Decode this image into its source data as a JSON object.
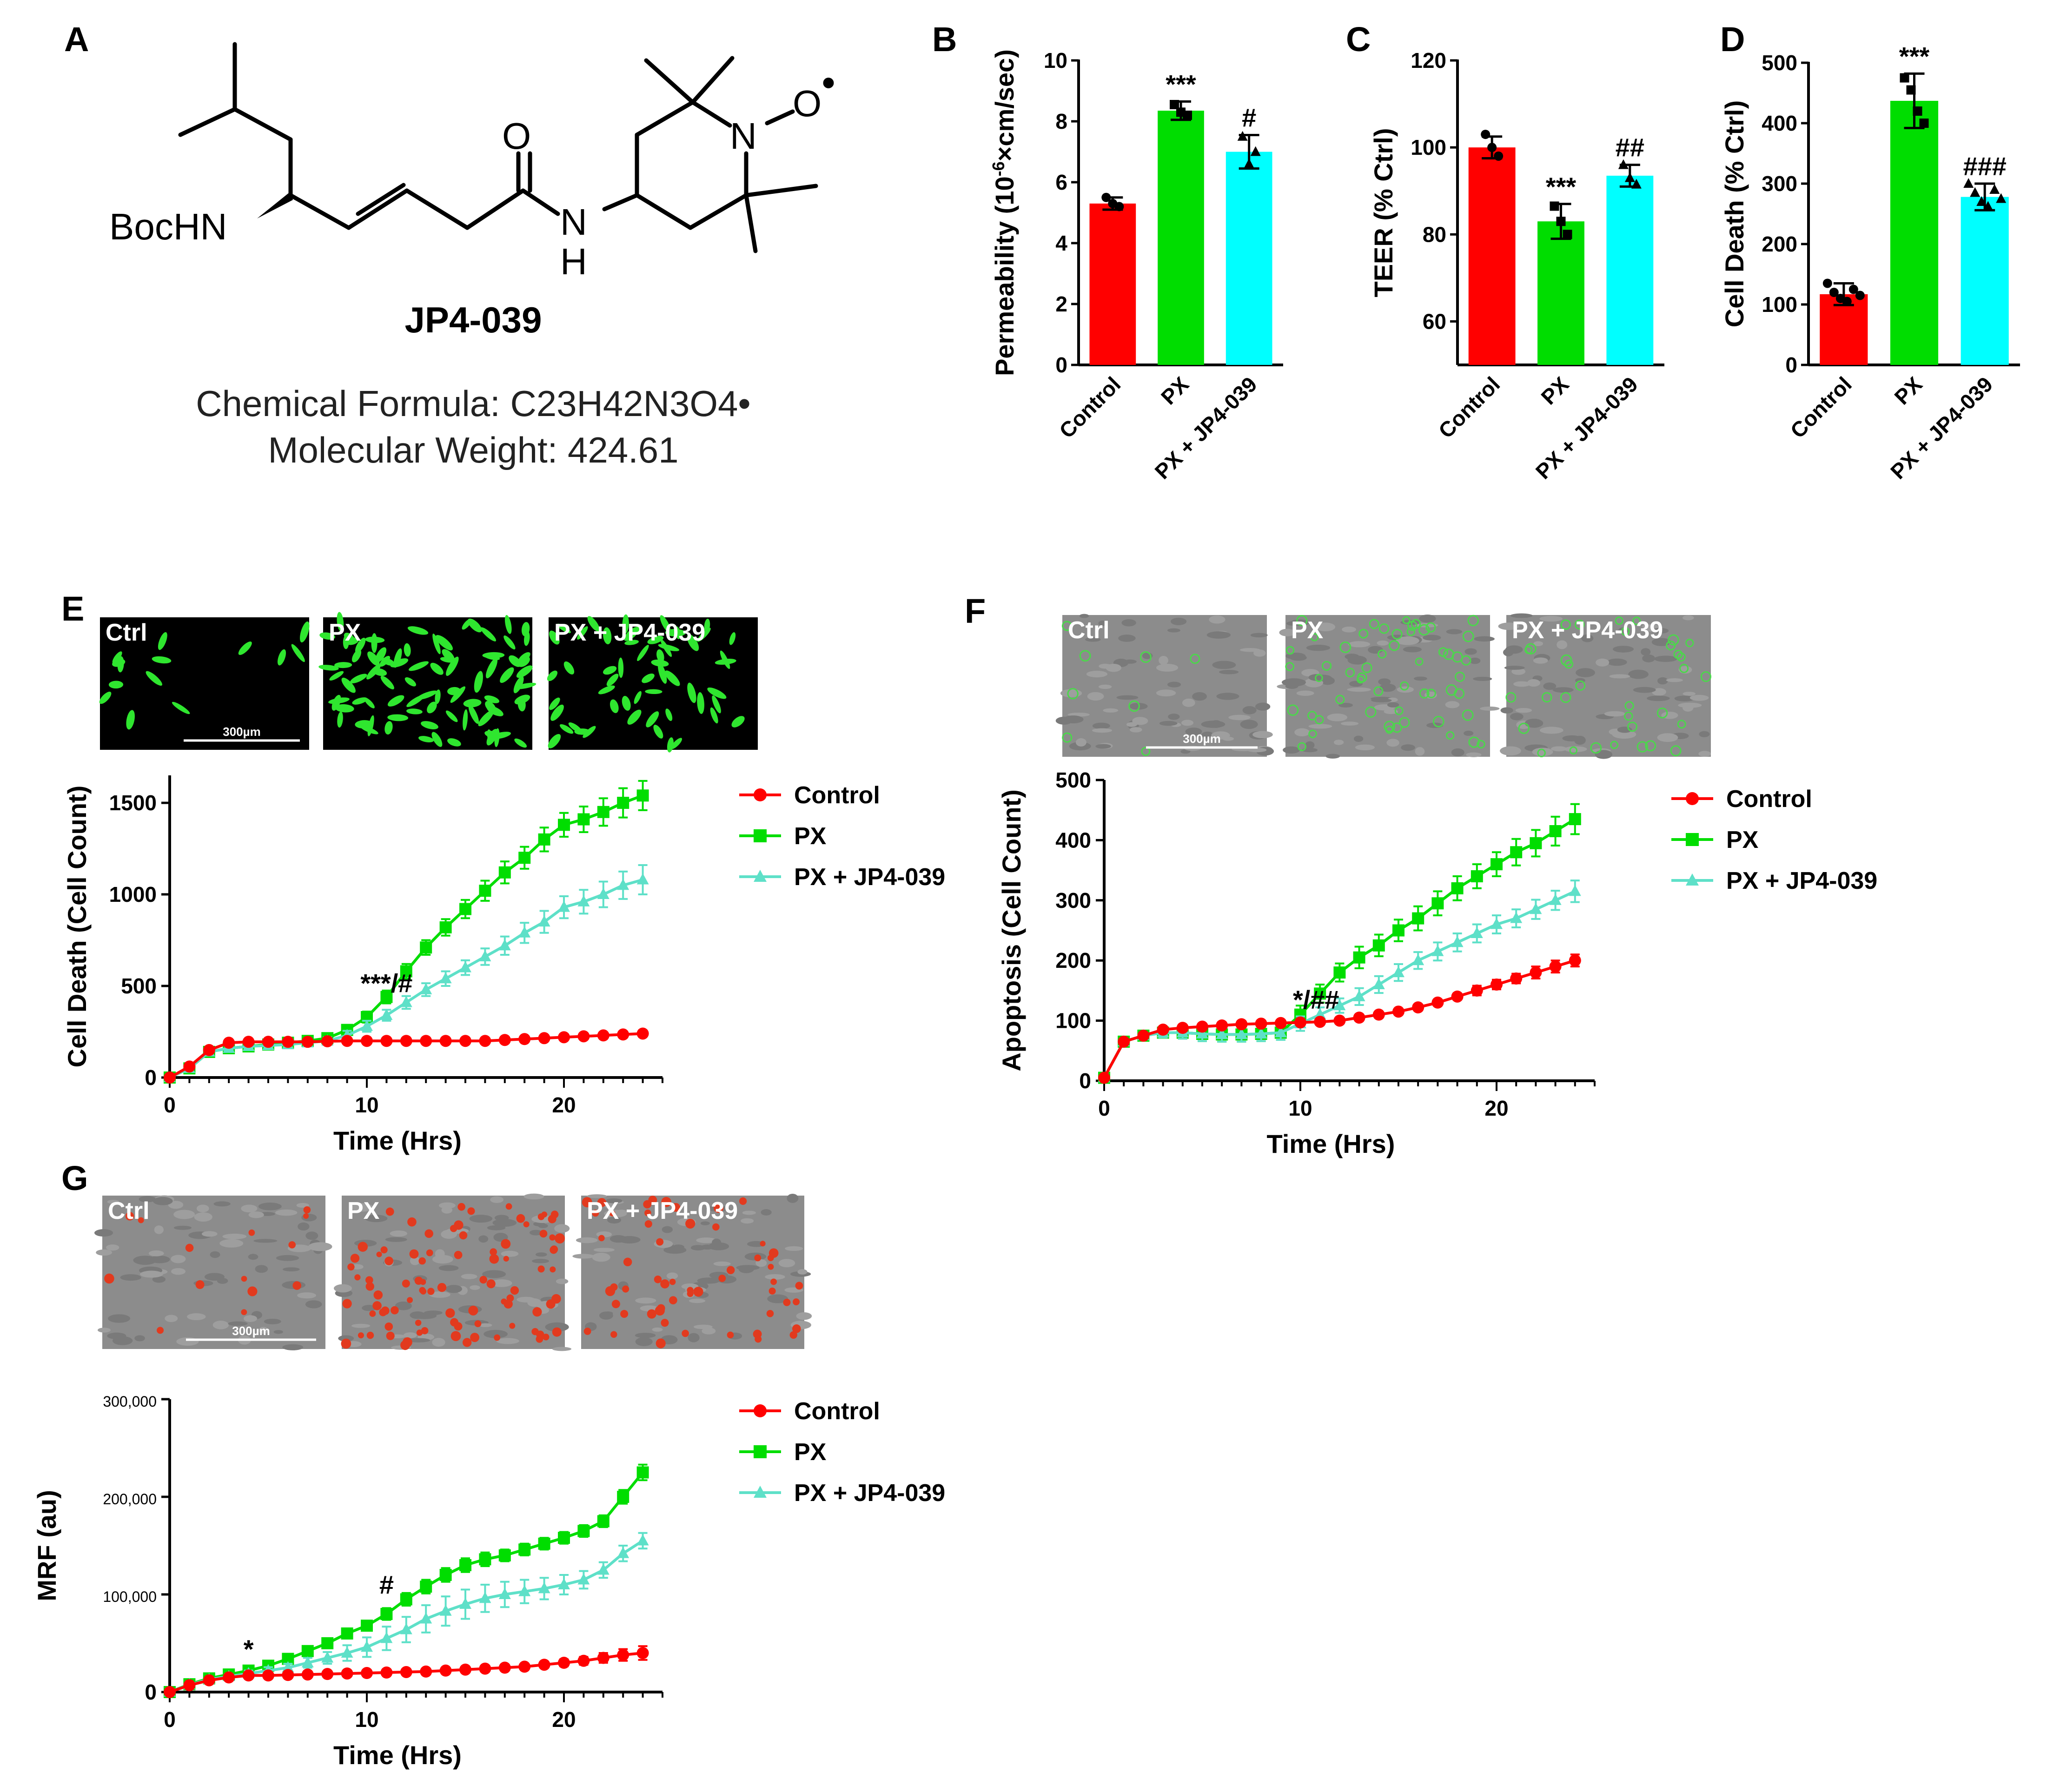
{
  "panels": {
    "A": "A",
    "B": "B",
    "C": "C",
    "D": "D",
    "E": "E",
    "F": "F",
    "G": "G"
  },
  "compound": {
    "bochn_label": "BocHN",
    "o_label": "O",
    "n_label": "N",
    "h_label": "H",
    "ring_n_label": "N",
    "ring_o_label": "O",
    "radical_dot": "•",
    "name": "JP4-039",
    "formula": "Chemical Formula: C23H42N3O4•",
    "weight": "Molecular Weight: 424.61"
  },
  "images": {
    "E": {
      "labels": [
        "Ctrl",
        "PX",
        "PX + JP4-039"
      ],
      "scale_bar": "300µm",
      "style": "fluorescence-green"
    },
    "F": {
      "labels": [
        "Ctrl",
        "PX",
        "PX + JP4-039"
      ],
      "scale_bar": "300µm",
      "style": "phase-green"
    },
    "G": {
      "labels": [
        "Ctrl",
        "PX",
        "PX + JP4-039"
      ],
      "scale_bar": "300µm",
      "style": "phase-red"
    }
  },
  "colors": {
    "control": "#ff0000",
    "px": "#00dd00",
    "px_jp": "#00ffff",
    "px_jp_line": "#5ee0c8",
    "axis": "#000000"
  },
  "chart_data": [
    {
      "id": "B",
      "type": "bar",
      "ylabel": "Permeability (10⁻⁶×cm/sec)",
      "ylabel_parts": [
        "Permeability (10",
        "-6",
        "×cm/sec)"
      ],
      "categories": [
        "Control",
        "PX",
        "PX + JP4-039"
      ],
      "values": [
        5.3,
        8.35,
        7.0
      ],
      "errors": [
        0.2,
        0.3,
        0.55
      ],
      "points": [
        [
          5.5,
          5.3,
          5.2
        ],
        [
          8.55,
          8.3,
          8.2
        ],
        [
          7.5,
          6.6,
          7.0
        ]
      ],
      "ylim": [
        0,
        10
      ],
      "yticks": [
        0,
        2,
        4,
        6,
        8,
        10
      ],
      "annotations": [
        "",
        "***",
        "#"
      ]
    },
    {
      "id": "C",
      "type": "bar",
      "ylabel": "TEER (% Ctrl)",
      "categories": [
        "Control",
        "PX",
        "PX + JP4-039"
      ],
      "values": [
        100,
        83,
        93.5
      ],
      "errors": [
        2.5,
        4,
        2.5
      ],
      "points": [
        [
          103,
          100,
          98
        ],
        [
          86.5,
          83,
          80
        ],
        [
          96,
          93,
          91.5
        ]
      ],
      "ylim": [
        50,
        120
      ],
      "yticks": [
        60,
        80,
        100,
        120
      ],
      "annotations": [
        "",
        "***",
        "##"
      ]
    },
    {
      "id": "D",
      "type": "bar",
      "ylabel": "Cell Death (% Ctrl)",
      "categories": [
        "Control",
        "PX",
        "PX + JP4-039"
      ],
      "values": [
        117,
        437,
        278
      ],
      "errors": [
        18,
        45,
        22
      ],
      "points": [
        [
          135,
          120,
          110,
          105,
          125,
          115
        ],
        [
          475,
          455,
          420,
          400
        ],
        [
          300,
          285,
          270,
          262,
          290,
          275
        ]
      ],
      "ylim": [
        0,
        500
      ],
      "yticks": [
        0,
        100,
        200,
        300,
        400,
        500
      ],
      "annotations": [
        "",
        "***",
        "###"
      ]
    },
    {
      "id": "E",
      "type": "line",
      "xlabel": "Time (Hrs)",
      "ylabel": "Cell Death (Cell Count)",
      "xlim": [
        0,
        25
      ],
      "ylim": [
        0,
        1650
      ],
      "xticks": [
        0,
        10,
        20
      ],
      "yticks": [
        0,
        500,
        1000,
        1500
      ],
      "x": [
        0,
        1,
        2,
        3,
        4,
        5,
        6,
        7,
        8,
        9,
        10,
        11,
        12,
        13,
        14,
        15,
        16,
        17,
        18,
        19,
        20,
        21,
        22,
        23,
        24
      ],
      "series": [
        {
          "name": "Control",
          "values": [
            0,
            60,
            150,
            190,
            195,
            195,
            195,
            195,
            198,
            200,
            200,
            200,
            200,
            200,
            200,
            200,
            200,
            205,
            210,
            215,
            220,
            225,
            230,
            235,
            240
          ],
          "errors": [
            0,
            10,
            10,
            10,
            10,
            10,
            10,
            10,
            10,
            10,
            10,
            10,
            10,
            10,
            10,
            10,
            10,
            10,
            10,
            10,
            10,
            10,
            10,
            10,
            10
          ]
        },
        {
          "name": "PX",
          "values": [
            0,
            50,
            140,
            160,
            170,
            180,
            190,
            200,
            215,
            260,
            330,
            440,
            580,
            710,
            820,
            920,
            1020,
            1120,
            1200,
            1300,
            1380,
            1410,
            1450,
            1500,
            1540
          ],
          "errors": [
            0,
            10,
            10,
            10,
            10,
            10,
            15,
            15,
            20,
            25,
            30,
            35,
            40,
            40,
            45,
            50,
            55,
            60,
            60,
            65,
            65,
            70,
            75,
            80,
            80
          ]
        },
        {
          "name": "PX + JP4-039",
          "values": [
            0,
            50,
            140,
            160,
            170,
            175,
            180,
            190,
            200,
            230,
            280,
            340,
            410,
            480,
            540,
            600,
            660,
            720,
            790,
            850,
            930,
            960,
            1000,
            1050,
            1080
          ],
          "errors": [
            0,
            10,
            10,
            10,
            10,
            10,
            15,
            15,
            20,
            25,
            30,
            30,
            35,
            35,
            40,
            40,
            45,
            50,
            55,
            60,
            60,
            65,
            70,
            75,
            80
          ]
        }
      ],
      "annotations": [
        {
          "text": "***/#",
          "x": 11,
          "y": 440
        }
      ]
    },
    {
      "id": "F",
      "type": "line",
      "xlabel": "Time (Hrs)",
      "ylabel": "Apoptosis (Cell Count)",
      "xlim": [
        0,
        25
      ],
      "ylim": [
        0,
        500
      ],
      "xticks": [
        0,
        10,
        20
      ],
      "yticks": [
        0,
        100,
        200,
        300,
        400,
        500
      ],
      "x": [
        0,
        1,
        2,
        3,
        4,
        5,
        6,
        7,
        8,
        9,
        10,
        11,
        12,
        13,
        14,
        15,
        16,
        17,
        18,
        19,
        20,
        21,
        22,
        23,
        24
      ],
      "series": [
        {
          "name": "Control",
          "values": [
            5,
            65,
            75,
            85,
            88,
            90,
            92,
            94,
            95,
            96,
            97,
            98,
            100,
            105,
            110,
            115,
            122,
            130,
            140,
            150,
            160,
            170,
            180,
            190,
            200
          ],
          "errors": [
            0,
            5,
            5,
            5,
            5,
            5,
            5,
            5,
            5,
            5,
            5,
            5,
            5,
            5,
            5,
            5,
            5,
            5,
            5,
            8,
            8,
            8,
            10,
            10,
            10
          ]
        },
        {
          "name": "PX",
          "values": [
            5,
            65,
            75,
            80,
            80,
            78,
            77,
            77,
            78,
            80,
            110,
            145,
            180,
            205,
            225,
            250,
            270,
            295,
            320,
            340,
            360,
            380,
            395,
            415,
            435
          ],
          "errors": [
            0,
            5,
            5,
            8,
            10,
            12,
            12,
            12,
            12,
            12,
            15,
            15,
            15,
            18,
            18,
            18,
            20,
            20,
            20,
            20,
            20,
            22,
            22,
            24,
            25
          ]
        },
        {
          "name": "PX + JP4-039",
          "values": [
            5,
            65,
            75,
            80,
            80,
            78,
            77,
            77,
            78,
            80,
            95,
            110,
            125,
            140,
            160,
            180,
            200,
            215,
            230,
            245,
            260,
            270,
            285,
            300,
            315
          ],
          "errors": [
            0,
            5,
            5,
            8,
            10,
            12,
            12,
            12,
            12,
            12,
            12,
            12,
            12,
            14,
            14,
            14,
            14,
            15,
            15,
            15,
            15,
            15,
            16,
            16,
            18
          ]
        }
      ],
      "annotations": [
        {
          "text": "*/##",
          "x": 10.8,
          "y": 112
        }
      ]
    },
    {
      "id": "G",
      "type": "line",
      "xlabel": "Time (Hrs)",
      "ylabel": "MRF (au)",
      "xlim": [
        0,
        25
      ],
      "ylim": [
        0,
        300000
      ],
      "xticks": [
        0,
        10,
        20
      ],
      "yticks": [
        0,
        100000,
        200000,
        300000
      ],
      "yticklabels": [
        "0",
        "100,000",
        "200,000",
        "300,000"
      ],
      "x": [
        0,
        1,
        2,
        3,
        4,
        5,
        6,
        7,
        8,
        9,
        10,
        11,
        12,
        13,
        14,
        15,
        16,
        17,
        18,
        19,
        20,
        21,
        22,
        23,
        24
      ],
      "series": [
        {
          "name": "Control",
          "values": [
            0,
            7000,
            12000,
            15000,
            17000,
            17000,
            17500,
            18000,
            18500,
            19000,
            19500,
            20000,
            20500,
            21000,
            22000,
            23000,
            24000,
            25000,
            26000,
            28000,
            30000,
            32000,
            35000,
            38000,
            40000
          ],
          "errors": [
            0,
            2000,
            2000,
            2000,
            2000,
            2000,
            2000,
            2000,
            2000,
            2000,
            2000,
            2000,
            2000,
            2000,
            2000,
            2000,
            2000,
            2000,
            2500,
            3000,
            3500,
            4000,
            5000,
            6000,
            7000
          ]
        },
        {
          "name": "PX",
          "values": [
            0,
            8000,
            14000,
            18000,
            22000,
            27000,
            34000,
            42000,
            50000,
            60000,
            68000,
            80000,
            95000,
            108000,
            120000,
            130000,
            136000,
            140000,
            146000,
            152000,
            158000,
            165000,
            175000,
            200000,
            225000
          ],
          "errors": [
            0,
            2000,
            2000,
            2500,
            3000,
            3000,
            3500,
            4000,
            4500,
            5000,
            5000,
            6000,
            6500,
            7000,
            7000,
            7000,
            7000,
            6000,
            6000,
            6000,
            6000,
            6000,
            6000,
            7000,
            8000
          ]
        },
        {
          "name": "PX + JP4-039",
          "values": [
            0,
            7500,
            13000,
            16000,
            19000,
            22000,
            25000,
            30000,
            35000,
            40000,
            46000,
            55000,
            64000,
            75000,
            83000,
            90000,
            96000,
            100000,
            103000,
            106000,
            110000,
            115000,
            125000,
            142000,
            155000
          ],
          "errors": [
            0,
            2000,
            2000,
            2500,
            3000,
            3500,
            4000,
            5000,
            6000,
            8000,
            10000,
            12000,
            13000,
            14000,
            15000,
            15000,
            14000,
            13000,
            12000,
            11000,
            10000,
            9000,
            8000,
            8000,
            8000
          ]
        }
      ],
      "annotations": [
        {
          "text": "*",
          "x": 4,
          "y": 30000
        },
        {
          "text": "#",
          "x": 11,
          "y": 96000
        }
      ]
    }
  ]
}
